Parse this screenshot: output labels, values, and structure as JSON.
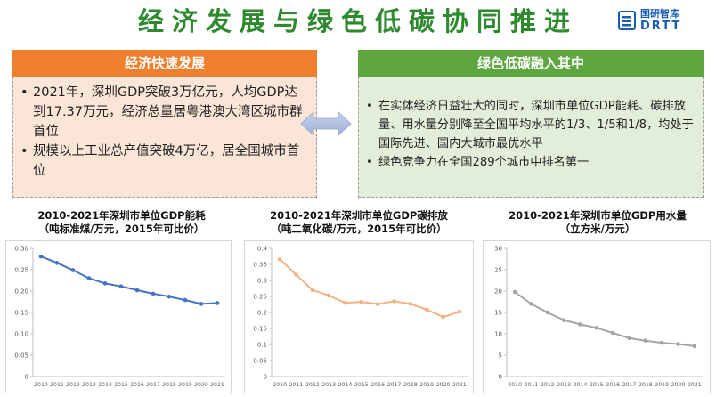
{
  "title": "经济发展与绿色低碳协同推进",
  "logo": {
    "cn": "国研智库",
    "en": "DRTT",
    "icon": "drtt-logo-icon"
  },
  "left_panel": {
    "header": "经济快速发展",
    "bullets": [
      "2021年，深圳GDP突破3万亿元，人均GDP达到17.37万元，经济总量居粤港澳大湾区城市群首位",
      "规模以上工业总产值突破4万亿，居全国城市首位"
    ]
  },
  "right_panel": {
    "header": "绿色低碳融入其中",
    "bullets": [
      "在实体经济日益壮大的同时，深圳市单位GDP能耗、碳排放量、用水量分别降至全国平均水平的1/3、1/5和1/8，均处于国际先进、国内大城市最优水平",
      "绿色竞争力在全国289个城市中排名第一"
    ]
  },
  "arrow_icon": "double-arrow-icon",
  "chart_data": [
    {
      "type": "line",
      "title": "2010-2021年深圳市单位GDP能耗",
      "subtitle": "（吨标准煤/万元，2015年可比价）",
      "x": [
        "2010",
        "2011",
        "2012",
        "2013",
        "2014",
        "2015",
        "2016",
        "2017",
        "2018",
        "2019",
        "2020",
        "2021"
      ],
      "series": [
        {
          "values": [
            0.281,
            0.266,
            0.249,
            0.23,
            0.218,
            0.211,
            0.202,
            0.194,
            0.187,
            0.179,
            0.17,
            0.172
          ]
        }
      ],
      "ylim": [
        0,
        0.3
      ],
      "yticks": [
        "0",
        "0.05",
        "0.10",
        "0.15",
        "0.20",
        "0.25",
        "0.30"
      ],
      "color": "#4472c4",
      "grid": false
    },
    {
      "type": "line",
      "title": "2010-2021年深圳市单位GDP碳排放",
      "subtitle": "（吨二氧化碳/万元，2015年可比价）",
      "x": [
        "2010",
        "2011",
        "2012",
        "2013",
        "2014",
        "2015",
        "2016",
        "2017",
        "2018",
        "2019",
        "2020",
        "2021"
      ],
      "series": [
        {
          "values": [
            0.366,
            0.318,
            0.27,
            0.253,
            0.23,
            0.233,
            0.226,
            0.235,
            0.227,
            0.209,
            0.186,
            0.202
          ]
        }
      ],
      "ylim": [
        0,
        0.4
      ],
      "yticks": [
        "0",
        "0.05",
        "0.1",
        "0.15",
        "0.2",
        "0.25",
        "0.3",
        "0.35",
        "0.4"
      ],
      "color": "#f4b183",
      "grid": false
    },
    {
      "type": "line",
      "title": "2010-2021年深圳市单位GDP用水量",
      "subtitle": "（立方米/万元）",
      "x": [
        "2010",
        "2011",
        "2012",
        "2013",
        "2014",
        "2015",
        "2016",
        "2017",
        "2018",
        "2019",
        "2020",
        "2021"
      ],
      "series": [
        {
          "values": [
            19.8,
            17.0,
            15.0,
            13.2,
            12.2,
            11.4,
            10.2,
            9.0,
            8.4,
            7.9,
            7.6,
            7.1
          ]
        }
      ],
      "ylim": [
        0,
        30
      ],
      "yticks": [
        "0",
        "5",
        "10",
        "15",
        "20",
        "25",
        "30"
      ],
      "color": "#a5a5a5",
      "grid": false
    }
  ]
}
